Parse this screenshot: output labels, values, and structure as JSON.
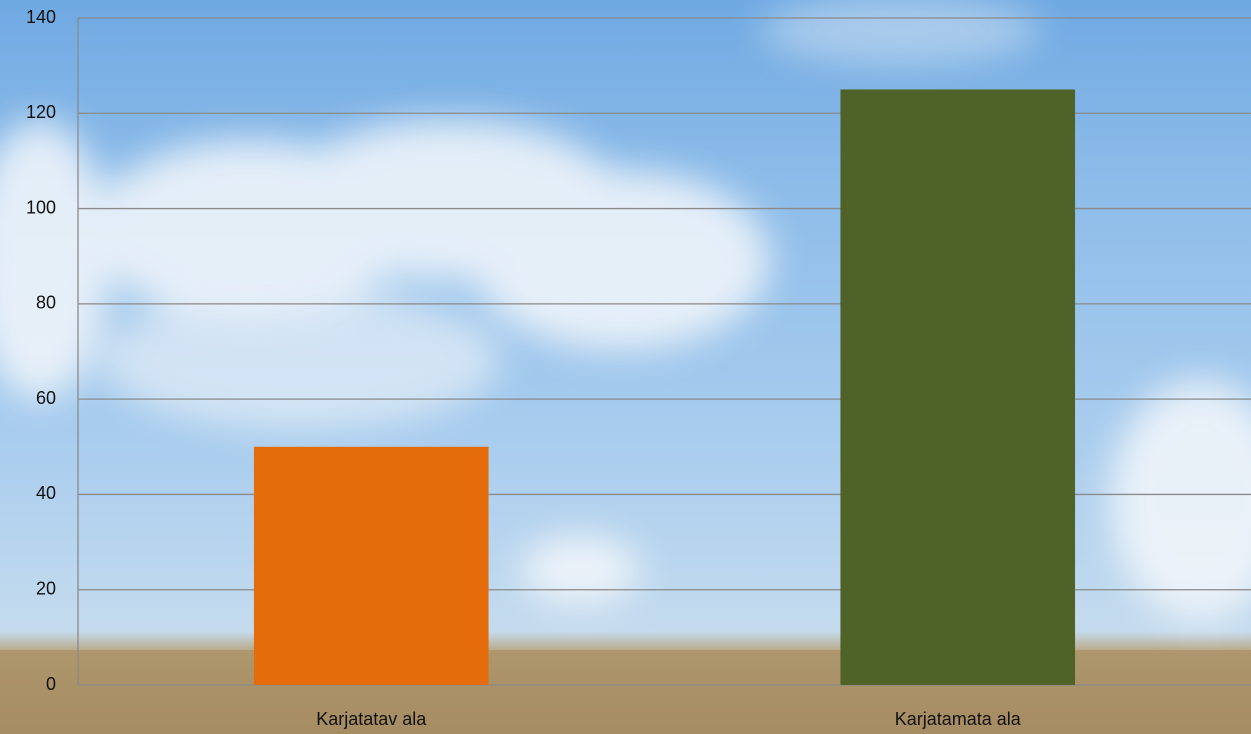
{
  "chart_data": {
    "type": "bar",
    "categories": [
      "Karjatatav ala",
      "Karjatamata ala"
    ],
    "values": [
      50,
      125
    ],
    "colors": [
      "#e46c0a",
      "#4f6228"
    ],
    "ylim": [
      0,
      140
    ],
    "yticks": [
      0,
      20,
      40,
      60,
      80,
      100,
      120,
      140
    ],
    "grid": true
  }
}
